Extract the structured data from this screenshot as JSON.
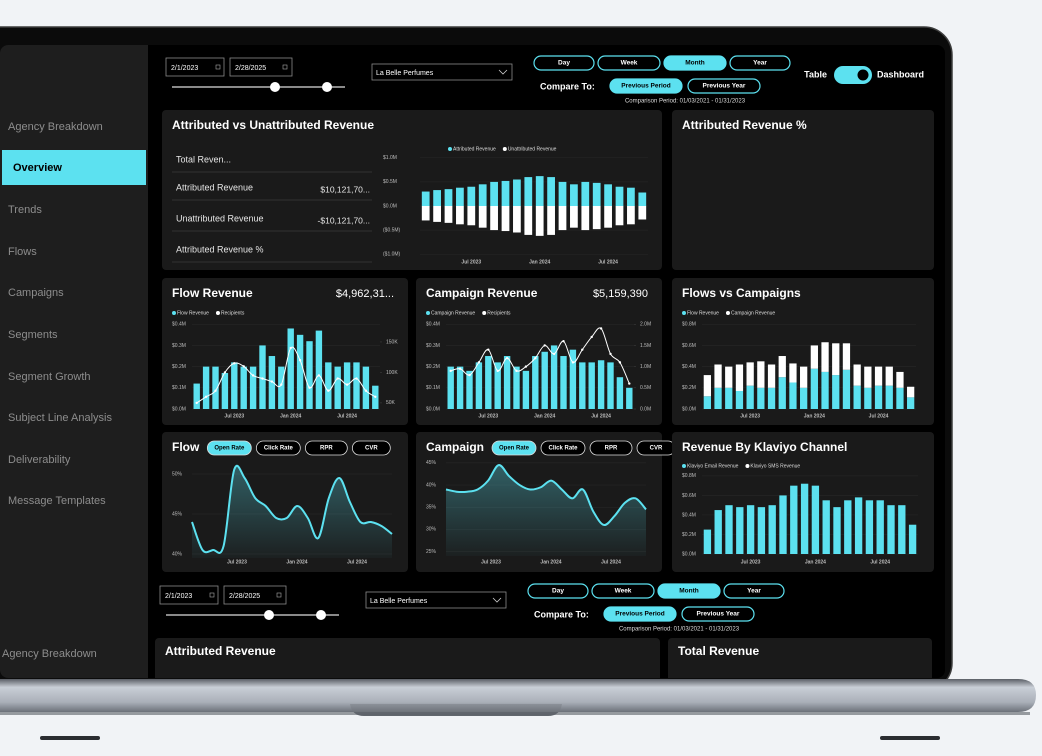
{
  "sidebar": {
    "items": [
      "Agency Breakdown",
      "Overview",
      "Trends",
      "Flows",
      "Campaigns",
      "Segments",
      "Segment Growth",
      "Subject Line Analysis",
      "Deliverability",
      "Message Templates"
    ],
    "active": 1,
    "footer_item": "Agency Breakdown"
  },
  "controls": {
    "start_date": "2/1/2023",
    "end_date": "2/28/2025",
    "account": "La Belle Perfumes",
    "granularity": [
      "Day",
      "Week",
      "Month",
      "Year"
    ],
    "granularity_active": 2,
    "compare_label": "Compare To:",
    "compare_options": [
      "Previous Period",
      "Previous Year"
    ],
    "compare_active": 0,
    "comparison_period": "Comparison Period: 01/03/2021 - 01/31/2023",
    "view_toggle": [
      "Table",
      "Dashboard"
    ]
  },
  "x_labels": [
    null,
    null,
    null,
    null,
    "Jul 2023",
    null,
    null,
    null,
    null,
    null,
    "Jan 2024",
    null,
    null,
    null,
    null,
    null,
    "Jul 2024",
    null,
    null,
    null
  ],
  "panels": [
    {
      "title": "Attributed vs Unattributed Revenue",
      "table": [
        {
          "label": "Total Reven..."
        },
        {
          "label": "Attributed Revenue",
          "value": "$10,121,70..."
        },
        {
          "label": "Unattributed Revenue",
          "value": "-$10,121,70..."
        },
        {
          "label": "Attributed Revenue %"
        }
      ],
      "chart": {
        "type": "diverging",
        "ylim": [
          -1.1,
          1.1
        ],
        "yticks": [
          {
            "value": 1,
            "label": "$1.0M"
          },
          {
            "value": 0.5,
            "label": "$0.5M"
          },
          {
            "value": 0,
            "label": "$0.0M"
          },
          {
            "value": -0.5,
            "label": "($0.5M)"
          },
          {
            "value": -1,
            "label": "($1.0M)"
          }
        ],
        "series": [
          {
            "name": "Attributed Revenue",
            "color": "#5ce1f0",
            "values": [
              0.3,
              0.33,
              0.35,
              0.38,
              0.4,
              0.45,
              0.5,
              0.52,
              0.55,
              0.6,
              0.62,
              0.6,
              0.5,
              0.45,
              0.5,
              0.48,
              0.45,
              0.4,
              0.38,
              0.28
            ]
          },
          {
            "name": "Unattributed Revenue",
            "color": "#ffffff",
            "values": [
              -0.3,
              -0.33,
              -0.35,
              -0.38,
              -0.4,
              -0.45,
              -0.5,
              -0.52,
              -0.55,
              -0.6,
              -0.62,
              -0.6,
              -0.5,
              -0.45,
              -0.5,
              -0.48,
              -0.45,
              -0.4,
              -0.38,
              -0.28
            ]
          }
        ]
      }
    },
    {
      "title": "Attributed Revenue %"
    },
    {
      "title": "Flow Revenue",
      "kpi": "$4,962,31...",
      "chart": {
        "type": "bar_line",
        "ylim": [
          0,
          0.42
        ],
        "y2lim": [
          40,
          186
        ],
        "yticks": [
          {
            "value": 0,
            "label": "$0.0M"
          },
          {
            "value": 0.1,
            "label": "$0.1M"
          },
          {
            "value": 0.2,
            "label": "$0.2M"
          },
          {
            "value": 0.3,
            "label": "$0.3M"
          },
          {
            "value": 0.4,
            "label": "$0.4M"
          }
        ],
        "y2ticks": [
          {
            "value": 50,
            "label": "50K"
          },
          {
            "value": 100,
            "label": "100K"
          },
          {
            "value": 150,
            "label": "150K"
          }
        ],
        "series": [
          {
            "name": "Flow Revenue",
            "color": "#5ce1f0",
            "values": [
              0.12,
              0.2,
              0.2,
              0.17,
              0.22,
              0.2,
              0.2,
              0.3,
              0.25,
              0.2,
              0.38,
              0.35,
              0.32,
              0.37,
              0.22,
              0.2,
              0.22,
              0.22,
              0.2,
              0.11
            ]
          },
          {
            "name": "Recipients",
            "color": "#ffffff",
            "axis": "y2",
            "values": [
              50,
              60,
              70,
              100,
              115,
              110,
              95,
              90,
              85,
              80,
              140,
              120,
              75,
              95,
              70,
              90,
              80,
              90,
              70,
              60
            ]
          }
        ]
      }
    },
    {
      "title": "Campaign Revenue",
      "kpi": "$5,159,390",
      "chart": {
        "type": "bar_line",
        "ylim": [
          0,
          0.42
        ],
        "y2lim": [
          0,
          2.1
        ],
        "yticks": [
          {
            "value": 0,
            "label": "$0.0M"
          },
          {
            "value": 0.1,
            "label": "$0.1M"
          },
          {
            "value": 0.2,
            "label": "$0.2M"
          },
          {
            "value": 0.3,
            "label": "$0.3M"
          },
          {
            "value": 0.4,
            "label": "$0.4M"
          }
        ],
        "y2ticks": [
          {
            "value": 0,
            "label": "0.0M"
          },
          {
            "value": 0.5,
            "label": "0.5M"
          },
          {
            "value": 1,
            "label": "1.0M"
          },
          {
            "value": 1.5,
            "label": "1.5M"
          },
          {
            "value": 2,
            "label": "2.0M"
          }
        ],
        "series": [
          {
            "name": "Campaign Revenue",
            "color": "#5ce1f0",
            "values": [
              0.2,
              0.2,
              0.18,
              0.22,
              0.25,
              0.22,
              0.25,
              0.2,
              0.18,
              0.25,
              0.27,
              0.3,
              0.25,
              0.28,
              0.22,
              0.22,
              0.23,
              0.22,
              0.15,
              0.1
            ]
          },
          {
            "name": "Recipients",
            "color": "#ffffff",
            "axis": "y2",
            "values": [
              0.9,
              0.95,
              0.8,
              1.1,
              1.4,
              0.9,
              1.2,
              0.9,
              1.0,
              1.2,
              1.5,
              1.3,
              1.6,
              1.1,
              1.4,
              1.7,
              1.9,
              1.3,
              1.1,
              0.6
            ]
          }
        ]
      }
    },
    {
      "title": "Flows vs Campaigns",
      "chart": {
        "type": "stacked",
        "ylim": [
          0,
          0.84
        ],
        "yticks": [
          {
            "value": 0,
            "label": "$0.0M"
          },
          {
            "value": 0.2,
            "label": "$0.2M"
          },
          {
            "value": 0.4,
            "label": "$0.4M"
          },
          {
            "value": 0.6,
            "label": "$0.6M"
          },
          {
            "value": 0.8,
            "label": "$0.8M"
          }
        ],
        "series": [
          {
            "name": "Flow Revenue",
            "color": "#5ce1f0",
            "values": [
              0.12,
              0.2,
              0.2,
              0.17,
              0.22,
              0.2,
              0.2,
              0.3,
              0.25,
              0.2,
              0.38,
              0.35,
              0.32,
              0.37,
              0.22,
              0.2,
              0.22,
              0.22,
              0.2,
              0.11
            ]
          },
          {
            "name": "Campaign Revenue",
            "color": "#ffffff",
            "values": [
              0.2,
              0.22,
              0.2,
              0.25,
              0.22,
              0.25,
              0.22,
              0.2,
              0.18,
              0.2,
              0.22,
              0.28,
              0.3,
              0.25,
              0.2,
              0.2,
              0.18,
              0.18,
              0.15,
              0.1
            ]
          }
        ]
      }
    },
    {
      "title": "Flow",
      "tabs": [
        "Open Rate",
        "Click Rate",
        "RPR",
        "CVR"
      ],
      "tab_active": 0,
      "chart": {
        "type": "line",
        "ylim": [
          39.5,
          52
        ],
        "yticks": [
          {
            "value": 40,
            "label": "40%"
          },
          {
            "value": 45,
            "label": "45%"
          },
          {
            "value": 50,
            "label": "50%"
          }
        ],
        "series": [
          {
            "name": "Open Rate",
            "color": "#5ce1f0",
            "values": [
              44,
              40.5,
              40.5,
              41,
              50.5,
              49.5,
              47,
              46,
              44.5,
              44.5,
              46,
              44.5,
              42,
              47,
              49.5,
              46.5,
              44,
              44,
              43.5,
              42.5
            ]
          }
        ]
      }
    },
    {
      "title": "Campaign",
      "tabs": [
        "Open Rate",
        "Click Rate",
        "RPR",
        "CVR"
      ],
      "tab_active": 0,
      "chart": {
        "type": "line",
        "ylim": [
          24,
          47
        ],
        "yticks": [
          {
            "value": 25,
            "label": "25%"
          },
          {
            "value": 30,
            "label": "30%"
          },
          {
            "value": 35,
            "label": "35%"
          },
          {
            "value": 40,
            "label": "40%"
          },
          {
            "value": 45,
            "label": "45%"
          }
        ],
        "series": [
          {
            "name": "Open Rate",
            "color": "#5ce1f0",
            "values": [
              39,
              38.5,
              38.5,
              39,
              41,
              44.5,
              42,
              40,
              39,
              39.5,
              41,
              39,
              37,
              39,
              34,
              31,
              33,
              36,
              37,
              34.5
            ]
          }
        ]
      }
    },
    {
      "title": "Revenue By Klaviyo Channel",
      "chart": {
        "type": "stacked",
        "ylim": [
          0,
          0.84
        ],
        "yticks": [
          {
            "value": 0,
            "label": "$0.0M"
          },
          {
            "value": 0.2,
            "label": "$0.2M"
          },
          {
            "value": 0.4,
            "label": "$0.4M"
          },
          {
            "value": 0.6,
            "label": "$0.6M"
          },
          {
            "value": 0.8,
            "label": "$0.8M"
          }
        ],
        "series": [
          {
            "name": "Klaviyo Email Revenue",
            "color": "#5ce1f0",
            "values": [
              0.25,
              0.45,
              0.5,
              0.48,
              0.5,
              0.48,
              0.5,
              0.6,
              0.7,
              0.72,
              0.7,
              0.55,
              0.48,
              0.55,
              0.58,
              0.55,
              0.55,
              0.5,
              0.5,
              0.3
            ]
          },
          {
            "name": "Klaviyo SMS Revenue",
            "color": "#ffffff",
            "values": [
              0,
              0,
              0,
              0,
              0,
              0,
              0,
              0,
              0,
              0,
              0,
              0,
              0,
              0,
              0,
              0,
              0,
              0,
              0,
              0
            ]
          }
        ]
      }
    }
  ],
  "lower_panels": {
    "titles": [
      "Attributed Revenue",
      "Total Revenue"
    ]
  }
}
